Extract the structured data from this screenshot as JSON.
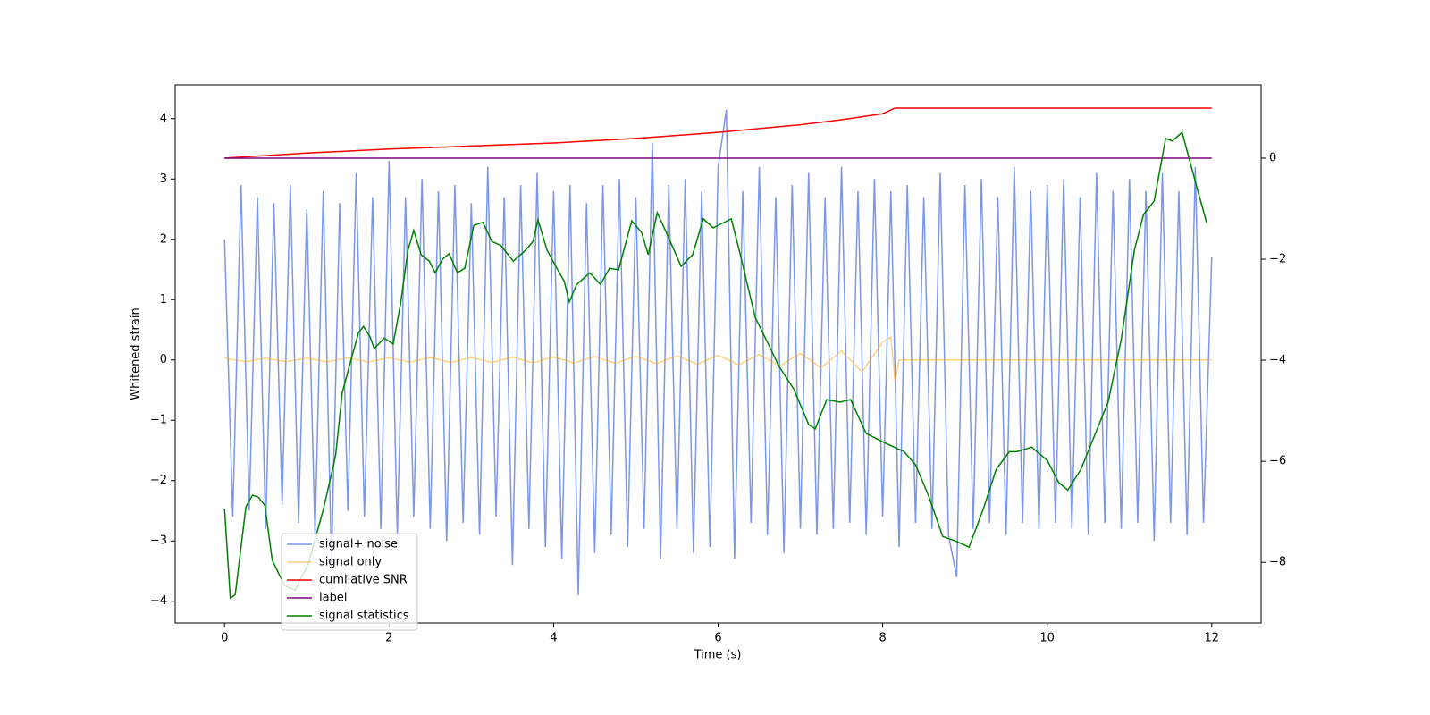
{
  "chart_data": {
    "type": "line",
    "xlabel": "Time (s)",
    "ylabel": "Whitened strain",
    "xlim": [
      -0.6,
      12.6
    ],
    "ylim": [
      -4.36,
      4.56
    ],
    "y2lim": [
      -9.2,
      1.45
    ],
    "xticks": [
      0,
      2,
      4,
      6,
      8,
      10,
      12
    ],
    "yticks": [
      {
        "value": -4,
        "label": "−4"
      },
      {
        "value": -3,
        "label": "−3"
      },
      {
        "value": -2,
        "label": "−2"
      },
      {
        "value": -1,
        "label": "−1"
      },
      0,
      1,
      2,
      3,
      4
    ],
    "y2ticks": [
      {
        "value": -8,
        "label": "−8"
      },
      {
        "value": -6,
        "label": "−6"
      },
      {
        "value": -4,
        "label": "−4"
      },
      {
        "value": -2,
        "label": "−2"
      },
      0
    ],
    "legend": "lower left",
    "series": [
      {
        "name": "signal+ noise",
        "color": "royalblue",
        "alpha": 0.7,
        "x": [
          0,
          0.1,
          0.2,
          0.3,
          0.4,
          0.5,
          0.6,
          0.7,
          0.8,
          0.9,
          1,
          1.1,
          1.2,
          1.3,
          1.4,
          1.5,
          1.6,
          1.7,
          1.8,
          1.9,
          2,
          2.1,
          2.2,
          2.3,
          2.4,
          2.5,
          2.6,
          2.7,
          2.8,
          2.9,
          3,
          3.1,
          3.2,
          3.3,
          3.4,
          3.5,
          3.6,
          3.7,
          3.8,
          3.9,
          4,
          4.1,
          4.2,
          4.3,
          4.4,
          4.5,
          4.6,
          4.7,
          4.8,
          4.9,
          5,
          5.1,
          5.2,
          5.3,
          5.4,
          5.5,
          5.6,
          5.7,
          5.8,
          5.9,
          6,
          6.1,
          6.2,
          6.3,
          6.4,
          6.5,
          6.6,
          6.7,
          6.8,
          6.9,
          7,
          7.1,
          7.2,
          7.3,
          7.4,
          7.5,
          7.6,
          7.7,
          7.8,
          7.9,
          8,
          8.1,
          8.2,
          8.3,
          8.4,
          8.5,
          8.6,
          8.7,
          8.8,
          8.9,
          9,
          9.1,
          9.2,
          9.3,
          9.4,
          9.5,
          9.6,
          9.7,
          9.8,
          9.9,
          10,
          10.1,
          10.2,
          10.3,
          10.4,
          10.5,
          10.6,
          10.7,
          10.8,
          10.9,
          11,
          11.1,
          11.2,
          11.3,
          11.4,
          11.5,
          11.6,
          11.7,
          11.8,
          11.9,
          12
        ],
        "values": [
          2.0,
          -2.6,
          2.9,
          -2.5,
          2.7,
          -2.8,
          2.6,
          -2.4,
          2.9,
          -2.7,
          2.5,
          -2.9,
          2.8,
          -3.4,
          2.6,
          -2.5,
          3.1,
          -2.6,
          2.7,
          -2.8,
          3.3,
          -2.9,
          2.7,
          -2.6,
          3.0,
          -2.8,
          2.8,
          -3.0,
          2.9,
          -2.7,
          2.6,
          -2.9,
          3.2,
          -2.6,
          2.7,
          -3.4,
          2.9,
          -2.8,
          3.1,
          -3.1,
          2.8,
          -3.3,
          2.9,
          -3.9,
          2.6,
          -3.2,
          2.9,
          -2.9,
          3.0,
          -3.1,
          2.7,
          -2.8,
          3.6,
          -3.3,
          2.9,
          -2.8,
          3.0,
          -3.2,
          2.8,
          -3.1,
          3.2,
          4.15,
          -3.3,
          2.8,
          -2.7,
          3.2,
          -2.9,
          2.7,
          -3.2,
          2.9,
          -2.8,
          3.1,
          -2.9,
          2.7,
          -2.8,
          3.2,
          -2.7,
          2.8,
          -2.9,
          3.0,
          -2.6,
          2.8,
          -3.1,
          2.9,
          -2.7,
          2.7,
          -2.8,
          3.1,
          -2.9,
          -3.6,
          2.9,
          -2.8,
          3.0,
          -2.7,
          2.7,
          -2.9,
          3.2,
          -2.7,
          2.8,
          -2.8,
          2.9,
          -2.7,
          3.0,
          -2.8,
          2.7,
          -2.9,
          3.1,
          -2.7,
          2.8,
          -2.8,
          3.0,
          -2.7,
          2.8,
          -3.0,
          3.1,
          -2.7,
          2.8,
          -2.9,
          3.2,
          -2.7,
          1.7
        ]
      },
      {
        "name": "signal only",
        "color": "orange",
        "alpha": 0.5,
        "x": [
          0,
          0.25,
          0.5,
          0.75,
          1,
          1.25,
          1.5,
          1.75,
          2,
          2.25,
          2.5,
          2.75,
          3,
          3.25,
          3.5,
          3.75,
          4,
          4.25,
          4.5,
          4.75,
          5,
          5.25,
          5.5,
          5.75,
          6,
          6.25,
          6.5,
          6.75,
          7,
          7.25,
          7.5,
          7.75,
          8,
          8.1,
          8.15,
          8.2,
          12
        ],
        "values": [
          0.03,
          -0.03,
          0.03,
          -0.03,
          0.03,
          -0.03,
          0.035,
          -0.035,
          0.035,
          -0.035,
          0.04,
          -0.04,
          0.04,
          -0.04,
          0.045,
          -0.045,
          0.05,
          -0.05,
          0.055,
          -0.055,
          0.06,
          -0.06,
          0.065,
          -0.07,
          0.075,
          -0.08,
          0.09,
          -0.1,
          0.11,
          -0.13,
          0.15,
          -0.2,
          0.3,
          0.38,
          -0.35,
          0,
          0
        ]
      },
      {
        "name": "cumilative SNR",
        "color": "red",
        "axis": "y2",
        "x": [
          0,
          1,
          2,
          3,
          4,
          5,
          6,
          7,
          7.5,
          8,
          8.15,
          12
        ],
        "values": [
          0,
          0.1,
          0.18,
          0.24,
          0.3,
          0.39,
          0.51,
          0.66,
          0.76,
          0.88,
          0.99,
          0.99
        ]
      },
      {
        "name": "label",
        "color": "purple",
        "axis": "y2",
        "x": [
          0,
          12
        ],
        "values": [
          0,
          0
        ]
      },
      {
        "name": "signal statistics",
        "color": "green",
        "axis": "y2",
        "x": [
          0,
          0.07,
          0.13,
          0.26,
          0.34,
          0.41,
          0.49,
          0.58,
          0.73,
          0.86,
          1.02,
          1.2,
          1.35,
          1.43,
          1.53,
          1.63,
          1.69,
          1.77,
          1.82,
          1.94,
          2.05,
          2.14,
          2.23,
          2.3,
          2.39,
          2.49,
          2.56,
          2.65,
          2.73,
          2.83,
          2.92,
          3.03,
          3.14,
          3.25,
          3.36,
          3.51,
          3.66,
          3.75,
          3.81,
          3.92,
          4.04,
          4.13,
          4.19,
          4.28,
          4.44,
          4.57,
          4.68,
          4.79,
          4.95,
          5.07,
          5.15,
          5.26,
          5.37,
          5.55,
          5.69,
          5.82,
          5.94,
          6.05,
          6.16,
          6.27,
          6.45,
          6.61,
          6.74,
          6.92,
          7.1,
          7.18,
          7.32,
          7.48,
          7.61,
          7.8,
          8.02,
          8.26,
          8.4,
          8.56,
          8.73,
          8.89,
          9.05,
          9.22,
          9.38,
          9.54,
          9.63,
          9.81,
          10,
          10.14,
          10.25,
          10.41,
          10.63,
          10.74,
          10.9,
          11.06,
          11.17,
          11.3,
          11.44,
          11.52,
          11.64,
          11.82,
          11.94
        ],
        "values": [
          -6.94,
          -8.71,
          -8.64,
          -6.9,
          -6.67,
          -6.71,
          -6.87,
          -7.96,
          -8.46,
          -8.55,
          -8.02,
          -6.96,
          -5.89,
          -4.65,
          -4.04,
          -3.45,
          -3.33,
          -3.54,
          -3.77,
          -3.56,
          -3.68,
          -2.88,
          -1.82,
          -1.43,
          -1.91,
          -2.04,
          -2.27,
          -2.0,
          -1.89,
          -2.27,
          -2.18,
          -1.33,
          -1.27,
          -1.65,
          -1.73,
          -2.04,
          -1.82,
          -1.65,
          -1.22,
          -1.82,
          -2.18,
          -2.44,
          -2.85,
          -2.5,
          -2.27,
          -2.5,
          -2.18,
          -2.21,
          -1.24,
          -1.47,
          -1.91,
          -1.08,
          -1.47,
          -2.14,
          -1.91,
          -1.2,
          -1.38,
          -1.29,
          -1.2,
          -1.91,
          -3.15,
          -3.68,
          -4.12,
          -4.57,
          -5.27,
          -5.36,
          -4.78,
          -4.83,
          -4.78,
          -5.45,
          -5.63,
          -5.81,
          -6.07,
          -6.69,
          -7.49,
          -7.58,
          -7.7,
          -6.96,
          -6.16,
          -5.81,
          -5.81,
          -5.72,
          -5.98,
          -6.42,
          -6.57,
          -6.16,
          -5.27,
          -4.83,
          -3.59,
          -1.82,
          -1.12,
          -0.85,
          0.39,
          0.34,
          0.51,
          -0.58,
          -1.29
        ]
      }
    ]
  }
}
